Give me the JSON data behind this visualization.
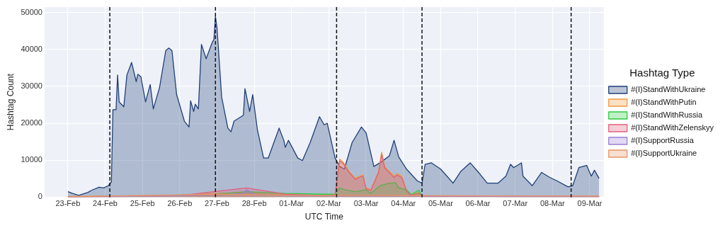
{
  "chart_data": {
    "type": "area",
    "xlabel": "UTC Time",
    "ylabel": "Hashtag Count",
    "legend_title": "Hashtag Type",
    "xlim": [
      "--02-22T09:00",
      "--03-09T09:00"
    ],
    "xticks": [
      {
        "value": "--02-23",
        "label": "23-Feb"
      },
      {
        "value": "--02-24",
        "label": "24-Feb"
      },
      {
        "value": "--02-25",
        "label": "25-Feb"
      },
      {
        "value": "--02-26",
        "label": "26-Feb"
      },
      {
        "value": "--02-27",
        "label": "27-Feb"
      },
      {
        "value": "--02-28",
        "label": "28-Feb"
      },
      {
        "value": "--03-01",
        "label": "01-Mar"
      },
      {
        "value": "--03-02",
        "label": "02-Mar"
      },
      {
        "value": "--03-03",
        "label": "03-Mar"
      },
      {
        "value": "--03-04",
        "label": "04-Mar"
      },
      {
        "value": "--03-05",
        "label": "05-Mar"
      },
      {
        "value": "--03-06",
        "label": "06-Mar"
      },
      {
        "value": "--03-07",
        "label": "07-Mar"
      },
      {
        "value": "--03-08",
        "label": "08-Mar"
      },
      {
        "value": "--03-09",
        "label": "09-Mar"
      }
    ],
    "ylim": [
      0,
      51500
    ],
    "yticks": [
      0,
      10000,
      20000,
      30000,
      40000,
      50000
    ],
    "grid": true,
    "legend": "right",
    "marker": "none",
    "ref_lines": [
      {
        "axis": "x",
        "value": "--02-24T03:00",
        "line_style": "dashed",
        "color": "#111111"
      },
      {
        "axis": "x",
        "value": "--02-26T23:00",
        "line_style": "dashed",
        "color": "#111111"
      },
      {
        "axis": "x",
        "value": "--03-02T05:00",
        "line_style": "dashed",
        "color": "#111111"
      },
      {
        "axis": "x",
        "value": "--03-04T12:00",
        "line_style": "dashed",
        "color": "#111111"
      },
      {
        "axis": "x",
        "value": "--03-08T12:00",
        "line_style": "dashed",
        "color": "#111111"
      }
    ],
    "series": [
      {
        "name": "#(I)StandWithUkraine",
        "color": "#1f3f78",
        "x": [
          "--02-23T00:00",
          "--02-23T03:00",
          "--02-23T07:00",
          "--02-23T13:00",
          "--02-23T15:00",
          "--02-23T20:00",
          "--02-23T23:00",
          "--02-24T02:00",
          "--02-24T04:00",
          "--02-24T05:00",
          "--02-24T07:00",
          "--02-24T08:00",
          "--02-24T09:00",
          "--02-24T12:00",
          "--02-24T14:00",
          "--02-24T17:00",
          "--02-24T20:00",
          "--02-24T21:00",
          "--02-24T23:00",
          "--02-25T02:00",
          "--02-25T05:00",
          "--02-25T07:00",
          "--02-25T11:00",
          "--02-25T15:00",
          "--02-25T17:00",
          "--02-25T19:00",
          "--02-25T22:00",
          "--02-26T03:00",
          "--02-26T06:00",
          "--02-26T07:00",
          "--02-26T09:00",
          "--02-26T10:00",
          "--02-26T12:00",
          "--02-26T14:00",
          "--02-26T17:00",
          "--02-26T21:00",
          "--02-26T22:00",
          "--02-26T23:00",
          "--02-27T00:00",
          "--02-27T03:00",
          "--02-27T07:00",
          "--02-27T09:00",
          "--02-27T11:00",
          "--02-27T17:00",
          "--02-27T18:00",
          "--02-27T21:00",
          "--02-27T23:00",
          "--02-28T02:00",
          "--02-28T06:00",
          "--02-28T09:00",
          "--02-28T12:00",
          "--02-28T16:00",
          "--02-28T19:00",
          "--02-28T20:00",
          "--02-28T22:00",
          "--03-01T04:00",
          "--03-01T07:00",
          "--03-01T12:00",
          "--03-01T18:00",
          "--03-01T21:00",
          "--03-01T23:00",
          "--03-02T04:00",
          "--03-02T07:00",
          "--03-02T10:00",
          "--03-02T15:00",
          "--03-02T21:00",
          "--03-03T00:00",
          "--03-03T05:00",
          "--03-03T10:00",
          "--03-03T15:00",
          "--03-03T18:00",
          "--03-03T21:00",
          "--03-04T02:00",
          "--03-04T09:00",
          "--03-04T12:00",
          "--03-04T14:00",
          "--03-04T18:00",
          "--03-05T00:00",
          "--03-05T08:00",
          "--03-05T13:00",
          "--03-05T19:00",
          "--03-06T01:00",
          "--03-06T06:00",
          "--03-06T13:00",
          "--03-06T18:00",
          "--03-06T21:00",
          "--03-06T23:00",
          "--03-07T04:00",
          "--03-07T05:00",
          "--03-07T11:00",
          "--03-07T17:00",
          "--03-07T22:00",
          "--03-08T03:00",
          "--03-08T10:00",
          "--03-08T13:00",
          "--03-08T17:00",
          "--03-08T22:00",
          "--03-09T01:00",
          "--03-09T03:00",
          "--03-09T06:00"
        ],
        "values": [
          1500,
          1000,
          500,
          1300,
          1800,
          2700,
          2500,
          3100,
          4100,
          23700,
          23700,
          33100,
          25800,
          24500,
          33100,
          36500,
          31300,
          33300,
          32600,
          25800,
          30500,
          23900,
          29700,
          39700,
          40400,
          39700,
          27800,
          20600,
          19000,
          26100,
          23200,
          25200,
          23900,
          41400,
          37500,
          42000,
          42700,
          49000,
          45900,
          27100,
          18700,
          17700,
          20600,
          22200,
          29400,
          23200,
          27800,
          18300,
          10600,
          10600,
          14100,
          18700,
          15400,
          13500,
          15400,
          10600,
          9900,
          14800,
          21800,
          19600,
          20000,
          10600,
          8300,
          7600,
          14800,
          19000,
          17400,
          8300,
          9600,
          11200,
          15400,
          10900,
          7600,
          4400,
          3800,
          8900,
          9300,
          7600,
          3800,
          7000,
          9300,
          6400,
          3800,
          3800,
          5700,
          8900,
          8000,
          9300,
          5700,
          3100,
          6700,
          5400,
          4400,
          2800,
          3100,
          8000,
          8600,
          5700,
          7300,
          5100
        ]
      },
      {
        "name": "#(I)StandWithPutin",
        "color": "#f09a3e",
        "x": [
          "--02-23T00:00",
          "--02-24T00:00",
          "--02-25T00:00",
          "--02-26T00:00",
          "--02-26T22:00",
          "--02-27T19:00",
          "--02-28T20:00",
          "--03-01T21:00",
          "--03-02T04:00",
          "--03-02T07:00",
          "--03-02T09:00",
          "--03-02T13:00",
          "--03-02T17:00",
          "--03-02T20:00",
          "--03-02T22:00",
          "--03-03T00:00",
          "--03-03T03:00",
          "--03-03T08:00",
          "--03-03T10:00",
          "--03-03T12:00",
          "--03-03T15:00",
          "--03-03T18:00",
          "--03-03T20:00",
          "--03-03T23:00",
          "--03-04T02:00",
          "--03-04T05:00",
          "--03-04T10:00",
          "--03-04T12:00",
          "--03-05T10:00",
          "--03-06T16:00",
          "--03-07T22:00",
          "--03-09T06:00"
        ],
        "values": [
          200,
          300,
          400,
          500,
          1000,
          1200,
          600,
          500,
          800,
          10300,
          9600,
          7000,
          5100,
          5700,
          6000,
          2500,
          2000,
          7000,
          12200,
          8300,
          7000,
          5700,
          6400,
          5700,
          1800,
          700,
          1300,
          400,
          300,
          300,
          300,
          300
        ]
      },
      {
        "name": "#(I)StandWithRussia",
        "color": "#2ecc40",
        "x": [
          "--02-23T00:00",
          "--02-25T00:00",
          "--02-26T22:00",
          "--02-27T19:00",
          "--02-28T20:00",
          "--03-01T21:00",
          "--03-02T04:00",
          "--03-02T07:00",
          "--03-02T10:00",
          "--03-02T17:00",
          "--03-03T00:00",
          "--03-03T03:00",
          "--03-03T09:00",
          "--03-03T15:00",
          "--03-03T19:00",
          "--03-03T21:00",
          "--03-04T02:00",
          "--03-04T05:00",
          "--03-04T10:00",
          "--03-04T12:00",
          "--03-05T20:00",
          "--03-07T12:00",
          "--03-09T06:00"
        ],
        "values": [
          100,
          300,
          800,
          1500,
          1000,
          800,
          800,
          2500,
          2000,
          1500,
          2000,
          1000,
          3100,
          3800,
          3900,
          2500,
          2000,
          700,
          1900,
          300,
          300,
          200,
          200
        ]
      },
      {
        "name": "#(I)StandWithZelenskyy",
        "color": "#e0607e",
        "x": [
          "--02-23T00:00",
          "--02-24T00:00",
          "--02-25T00:00",
          "--02-26T00:00",
          "--02-26T22:00",
          "--02-27T19:00",
          "--02-28T20:00",
          "--03-01T21:00",
          "--03-02T04:00",
          "--03-02T07:00",
          "--03-02T09:00",
          "--03-02T13:00",
          "--03-02T17:00",
          "--03-02T20:00",
          "--03-02T22:00",
          "--03-03T00:00",
          "--03-03T03:00",
          "--03-03T08:00",
          "--03-03T10:00",
          "--03-03T12:00",
          "--03-03T15:00",
          "--03-03T18:00",
          "--03-03T20:00",
          "--03-03T23:00",
          "--03-04T02:00",
          "--03-04T05:00",
          "--03-04T10:00",
          "--03-04T12:00",
          "--03-06T00:00",
          "--03-09T06:00"
        ],
        "values": [
          100,
          200,
          300,
          400,
          1500,
          2500,
          800,
          400,
          600,
          9800,
          9200,
          6700,
          4800,
          5400,
          5700,
          2300,
          1800,
          6600,
          11500,
          7900,
          6600,
          5300,
          6000,
          5300,
          1600,
          500,
          1000,
          300,
          200,
          200
        ]
      },
      {
        "name": "#(I)SupportRussia",
        "color": "#9b7fd4",
        "x": [
          "--02-23T00:00",
          "--02-26T22:00",
          "--02-27T17:00",
          "--02-27T19:00",
          "--02-28T00:00",
          "--03-01T06:00",
          "--03-03T08:00",
          "--03-09T06:00"
        ],
        "values": [
          0,
          500,
          1000,
          2000,
          800,
          300,
          300,
          100
        ]
      },
      {
        "name": "#(I)SupportUkraine",
        "color": "#e8946a",
        "x": [
          "--02-23T00:00",
          "--02-26T22:00",
          "--03-01T06:00",
          "--03-03T08:00",
          "--03-05T10:00",
          "--03-09T06:00"
        ],
        "values": [
          100,
          800,
          500,
          500,
          400,
          300
        ]
      }
    ]
  }
}
